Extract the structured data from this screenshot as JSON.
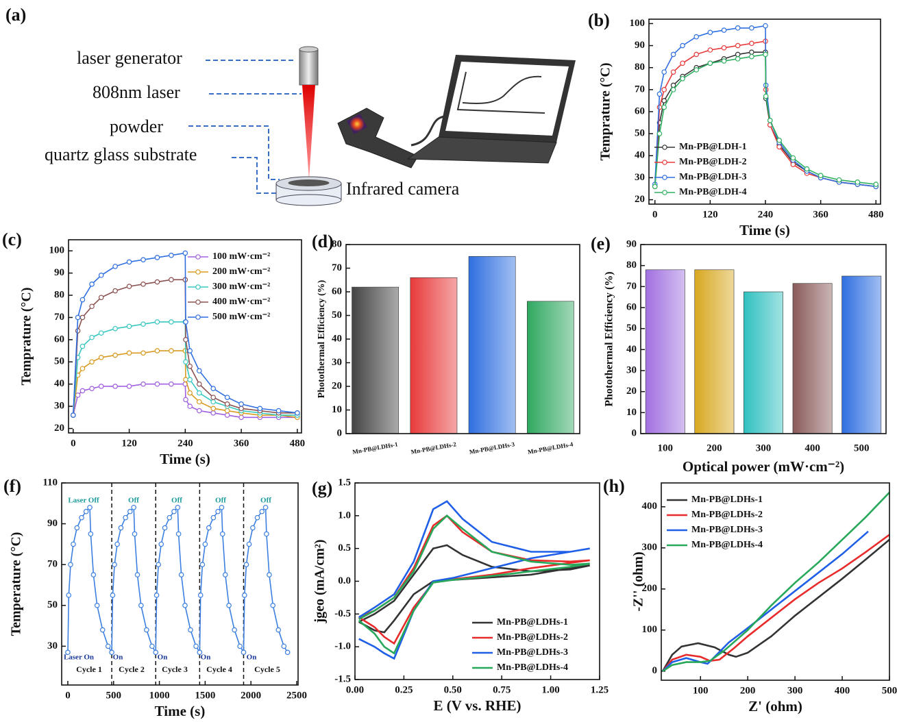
{
  "panel_a": {
    "label": "(a)",
    "laser_generator": "laser generator",
    "laser": "808nm laser",
    "powder": "powder",
    "substrate": "quartz glass substrate",
    "camera": "Infrared camera"
  },
  "chart_data": [
    {
      "type": "line",
      "label": "(b)",
      "xlabel": "Time (s)",
      "ylabel": "Temprature (°C)",
      "xlim": [
        -13,
        490
      ],
      "ylim": [
        18,
        102
      ],
      "xticks": [
        0,
        120,
        240,
        360,
        480
      ],
      "yticks": [
        20,
        30,
        40,
        50,
        60,
        70,
        80,
        90,
        100
      ],
      "markers": true,
      "legend": "lower left",
      "x": [
        0,
        10,
        20,
        40,
        60,
        90,
        120,
        150,
        180,
        210,
        240,
        241,
        250,
        270,
        300,
        330,
        360,
        400,
        440,
        480
      ],
      "series": [
        {
          "name": "Mn-PB@LDH-1",
          "color": "#333333",
          "values": [
            26,
            55,
            65,
            72,
            76,
            80,
            82,
            84,
            86,
            87,
            87,
            66,
            54,
            45,
            37,
            33,
            30,
            28,
            27,
            26
          ]
        },
        {
          "name": "Mn-PB@LDH-2",
          "color": "#e8393a",
          "values": [
            26,
            62,
            70,
            78,
            82,
            86,
            88,
            89,
            90,
            91,
            92,
            70,
            54,
            44,
            36,
            32,
            30,
            28,
            27,
            26
          ]
        },
        {
          "name": "Mn-PB@LDH-3",
          "color": "#2f6fe0",
          "values": [
            27,
            68,
            78,
            86,
            90,
            94,
            96,
            97,
            98,
            98,
            99,
            72,
            56,
            46,
            38,
            33,
            30,
            28,
            27,
            26
          ]
        },
        {
          "name": "Mn-PB@LDH-4",
          "color": "#2fb060",
          "values": [
            26,
            50,
            62,
            70,
            75,
            79,
            82,
            83,
            84,
            85,
            86,
            67,
            56,
            47,
            39,
            34,
            31,
            29,
            28,
            27
          ]
        }
      ]
    },
    {
      "type": "line",
      "label": "(c)",
      "xlabel": "Time (s)",
      "ylabel": "Temprature (°C)",
      "xlim": [
        -10,
        489
      ],
      "ylim": [
        18,
        105
      ],
      "xticks": [
        0,
        120,
        240,
        360,
        480
      ],
      "yticks": [
        20,
        30,
        40,
        50,
        60,
        70,
        80,
        90,
        100
      ],
      "markers": true,
      "legend": "upper right",
      "x": [
        0,
        10,
        20,
        40,
        60,
        90,
        120,
        150,
        180,
        210,
        240,
        241,
        250,
        270,
        300,
        330,
        360,
        400,
        440,
        480
      ],
      "series": [
        {
          "name": "100 mW·cm⁻²",
          "color": "#a060e0",
          "values": [
            26,
            35,
            37,
            38,
            39,
            39,
            39,
            40,
            40,
            40,
            40,
            33,
            30,
            28,
            27,
            26,
            25,
            25,
            25,
            25
          ]
        },
        {
          "name": "200 mW·cm⁻²",
          "color": "#d89a20",
          "values": [
            26,
            44,
            47,
            50,
            52,
            53,
            54,
            54,
            55,
            55,
            55,
            42,
            36,
            32,
            29,
            28,
            27,
            26,
            26,
            25
          ]
        },
        {
          "name": "300 mW·cm⁻²",
          "color": "#38c8c0",
          "values": [
            26,
            52,
            57,
            61,
            63,
            65,
            66,
            67,
            68,
            68,
            68,
            50,
            42,
            36,
            32,
            30,
            28,
            27,
            26,
            26
          ]
        },
        {
          "name": "400 mW·cm⁻²",
          "color": "#8a5050",
          "values": [
            26,
            64,
            70,
            75,
            79,
            82,
            84,
            85,
            86,
            87,
            87,
            60,
            48,
            40,
            34,
            31,
            29,
            28,
            27,
            27
          ]
        },
        {
          "name": "500 mW·cm⁻²",
          "color": "#2f6fe0",
          "values": [
            26,
            70,
            78,
            85,
            89,
            93,
            95,
            96,
            97,
            98,
            99,
            68,
            55,
            46,
            38,
            34,
            31,
            29,
            28,
            27
          ]
        }
      ]
    },
    {
      "type": "bar",
      "label": "(d)",
      "ylabel": "Photothermal Efficiency (%)",
      "ylim": [
        0,
        80
      ],
      "yticks": [
        0,
        10,
        20,
        30,
        40,
        50,
        60,
        70,
        80
      ],
      "categories": [
        "Mn-PB@LDHs-1",
        "Mn-PB@LDHs-2",
        "Mn-PB@LDHs-3",
        "Mn-PB@LDHs-4"
      ],
      "values": [
        62,
        66,
        75,
        56
      ],
      "colors": [
        "#444444",
        "#e83a3a",
        "#2f6fe0",
        "#2fa860"
      ]
    },
    {
      "type": "bar",
      "label": "(e)",
      "xlabel": "Optical power (mW·cm⁻²)",
      "ylabel": "Photothermal Efficiency (%)",
      "ylim": [
        0,
        90
      ],
      "yticks": [
        0,
        10,
        20,
        30,
        40,
        50,
        60,
        70,
        80,
        90
      ],
      "categories": [
        "100",
        "200",
        "300",
        "400",
        "500"
      ],
      "values": [
        78,
        78,
        67.5,
        71.5,
        75
      ],
      "colors": [
        "#a070e0",
        "#d8a820",
        "#30c0c0",
        "#8a5a5a",
        "#2f6fe0"
      ]
    },
    {
      "type": "line",
      "label": "(f)",
      "xlabel": "Time (s)",
      "ylabel": "Temperature (°C)",
      "xlim": [
        -67,
        2515
      ],
      "ylim": [
        11,
        110
      ],
      "xticks": [
        0,
        500,
        1000,
        1500,
        2000,
        2500
      ],
      "yticks": [
        30,
        50,
        70,
        90,
        110
      ],
      "markers": true,
      "dividers": [
        480,
        960,
        1440,
        1920
      ],
      "off_labels": [
        "Laser Off",
        "Off",
        "Off",
        "Off",
        "Off"
      ],
      "on_labels": [
        "Laser On",
        "On",
        "On",
        "On",
        "On"
      ],
      "cycles": [
        "Cycle 1",
        "Cycle 2",
        "Cycle 3",
        "Cycle 4",
        "Cycle 5"
      ],
      "x": [
        0,
        10,
        30,
        60,
        100,
        150,
        200,
        240,
        250,
        280,
        320,
        380,
        440,
        480,
        490,
        510,
        540,
        580,
        630,
        680,
        720,
        730,
        760,
        800,
        860,
        920,
        960,
        970,
        990,
        1020,
        1060,
        1110,
        1160,
        1200,
        1210,
        1240,
        1280,
        1340,
        1400,
        1440,
        1450,
        1470,
        1500,
        1540,
        1590,
        1640,
        1680,
        1690,
        1720,
        1760,
        1820,
        1880,
        1920,
        1930,
        1950,
        1980,
        2020,
        2070,
        2120,
        2160,
        2170,
        2200,
        2240,
        2300,
        2360,
        2400
      ],
      "series": [
        {
          "color": "#3b7fe0",
          "values": [
            27,
            55,
            70,
            80,
            88,
            93,
            96,
            98,
            85,
            65,
            50,
            38,
            30,
            27,
            55,
            70,
            80,
            88,
            93,
            96,
            98,
            85,
            65,
            50,
            38,
            30,
            27,
            55,
            70,
            80,
            88,
            93,
            96,
            98,
            85,
            65,
            50,
            38,
            30,
            27,
            55,
            70,
            80,
            88,
            93,
            96,
            98,
            85,
            65,
            50,
            38,
            30,
            27,
            55,
            70,
            80,
            88,
            93,
            96,
            98,
            85,
            65,
            50,
            38,
            30,
            27
          ]
        }
      ]
    },
    {
      "type": "line",
      "label": "(g)",
      "xlabel": "E (V vs. RHE)",
      "ylabel": "jgeo (mA/cm²)",
      "xlim": [
        0,
        1.25
      ],
      "ylim": [
        -1.5,
        1.5
      ],
      "xticks": [
        {
          "value": 0,
          "label": "0.00"
        },
        {
          "value": 0.25,
          "label": "0.25"
        },
        {
          "value": 0.5,
          "label": "0.50"
        },
        {
          "value": 0.75,
          "label": "0.75"
        },
        {
          "value": 1,
          "label": "1.00"
        },
        {
          "value": 1.25,
          "label": "1.25"
        }
      ],
      "yticks": [
        -1.5,
        {
          "value": -1,
          "label": "-1.0"
        },
        -0.5,
        {
          "value": 0,
          "label": "0.0"
        },
        0.5,
        {
          "value": 1,
          "label": "1.0"
        },
        1.5
      ],
      "markers": false,
      "legend": "lower right",
      "x": [
        0.02,
        0.1,
        0.2,
        0.3,
        0.4,
        0.47,
        0.55,
        0.7,
        0.9,
        1.1,
        1.2,
        1.1,
        0.9,
        0.7,
        0.5,
        0.4,
        0.3,
        0.2,
        0.15,
        0.1,
        0.02
      ],
      "series": [
        {
          "name": "Mn-PB@LDHs-1",
          "color": "#333333",
          "values": [
            -0.62,
            -0.5,
            -0.3,
            0.1,
            0.5,
            0.55,
            0.4,
            0.22,
            0.15,
            0.18,
            0.24,
            0.2,
            0.1,
            0.06,
            0.02,
            0.0,
            -0.2,
            -0.6,
            -0.78,
            -0.75,
            -0.62
          ]
        },
        {
          "name": "Mn-PB@LDHs-2",
          "color": "#e82a2a",
          "values": [
            -0.55,
            -0.45,
            -0.25,
            0.2,
            0.85,
            1.0,
            0.75,
            0.45,
            0.32,
            0.3,
            0.32,
            0.28,
            0.2,
            0.1,
            0.03,
            -0.02,
            -0.4,
            -0.95,
            -0.85,
            -0.7,
            -0.55
          ]
        },
        {
          "name": "Mn-PB@LDHs-3",
          "color": "#1f5fe8",
          "values": [
            -0.55,
            -0.4,
            -0.2,
            0.3,
            1.1,
            1.22,
            0.95,
            0.6,
            0.45,
            0.45,
            0.5,
            0.45,
            0.35,
            0.2,
            0.05,
            0.0,
            -0.45,
            -1.18,
            -1.1,
            -1.0,
            -0.88
          ]
        },
        {
          "name": "Mn-PB@LDHs-4",
          "color": "#27a85a",
          "values": [
            -0.58,
            -0.45,
            -0.25,
            0.15,
            0.8,
            1.0,
            0.8,
            0.45,
            0.3,
            0.25,
            0.27,
            0.22,
            0.15,
            0.08,
            0.02,
            -0.02,
            -0.45,
            -1.1,
            -1.0,
            -0.8,
            -0.6
          ]
        }
      ]
    },
    {
      "type": "line",
      "label": "(h)",
      "xlabel": "Z' (ohm)",
      "ylabel": "-Z'' (ohm)",
      "xlim": [
        17,
        500
      ],
      "ylim": [
        -22,
        458
      ],
      "xticks": [
        100,
        200,
        300,
        400,
        500
      ],
      "yticks": [
        0,
        100,
        200,
        300,
        400
      ],
      "markers": false,
      "legend": "upper left",
      "series": [
        {
          "name": "Mn-PB@LDHs-1",
          "color": "#333333",
          "x": [
            20,
            40,
            60,
            95,
            130,
            160,
            175,
            200,
            250,
            300,
            350,
            400,
            450,
            500
          ],
          "values": [
            0,
            40,
            60,
            68,
            58,
            40,
            35,
            45,
            85,
            135,
            180,
            225,
            272,
            320
          ]
        },
        {
          "name": "Mn-PB@LDHs-2",
          "color": "#e82a2a",
          "x": [
            20,
            40,
            70,
            100,
            120,
            140,
            170,
            200,
            250,
            300,
            350,
            400,
            450,
            500
          ],
          "values": [
            0,
            28,
            40,
            35,
            25,
            28,
            55,
            85,
            130,
            175,
            215,
            250,
            290,
            332
          ]
        },
        {
          "name": "Mn-PB@LDHs-3",
          "color": "#1f5fe8",
          "x": [
            20,
            40,
            70,
            100,
            115,
            130,
            160,
            200,
            250,
            300,
            350,
            400,
            455
          ],
          "values": [
            0,
            22,
            32,
            22,
            18,
            35,
            70,
            105,
            150,
            195,
            240,
            285,
            340
          ]
        },
        {
          "name": "Mn-PB@LDHs-4",
          "color": "#27a85a",
          "x": [
            20,
            40,
            70,
            100,
            120,
            150,
            200,
            250,
            300,
            350,
            400,
            450,
            500
          ],
          "values": [
            0,
            15,
            22,
            22,
            25,
            50,
            100,
            160,
            215,
            265,
            320,
            375,
            435
          ]
        }
      ]
    }
  ]
}
